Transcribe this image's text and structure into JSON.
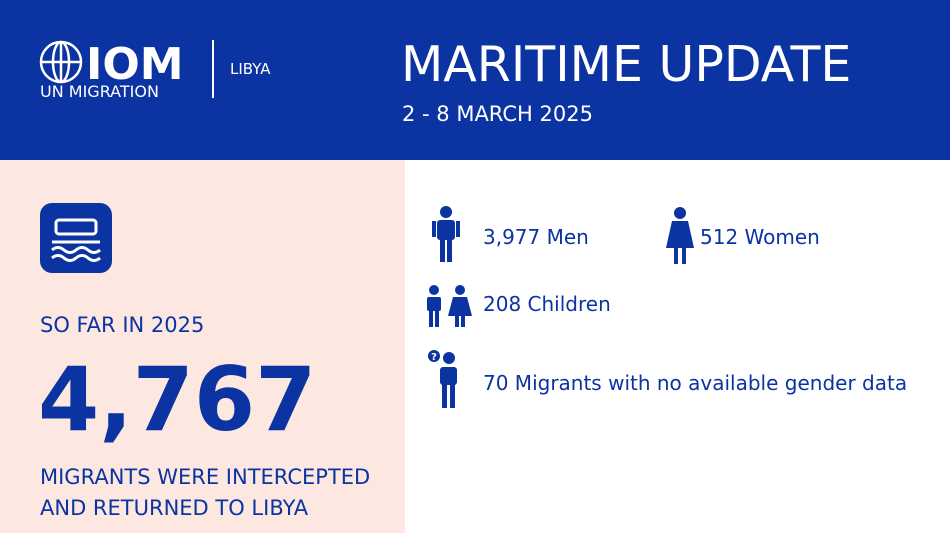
{
  "header": {
    "logo": {
      "name": "IOM",
      "tagline": "UN MIGRATION",
      "country": "LIBYA"
    },
    "title": "MARITIME UPDATE",
    "date_range": "2 - 8 MARCH 2025"
  },
  "summary": {
    "label": "SO FAR IN 2025",
    "total": "4,767",
    "description": [
      "MIGRANTS WERE INTERCEPTED",
      "AND RETURNED TO LIBYA"
    ]
  },
  "breakdown": {
    "men": "3,977 Men",
    "women": "512 Women",
    "children": "208 Children",
    "unknown": "70 Migrants with no available gender data"
  }
}
